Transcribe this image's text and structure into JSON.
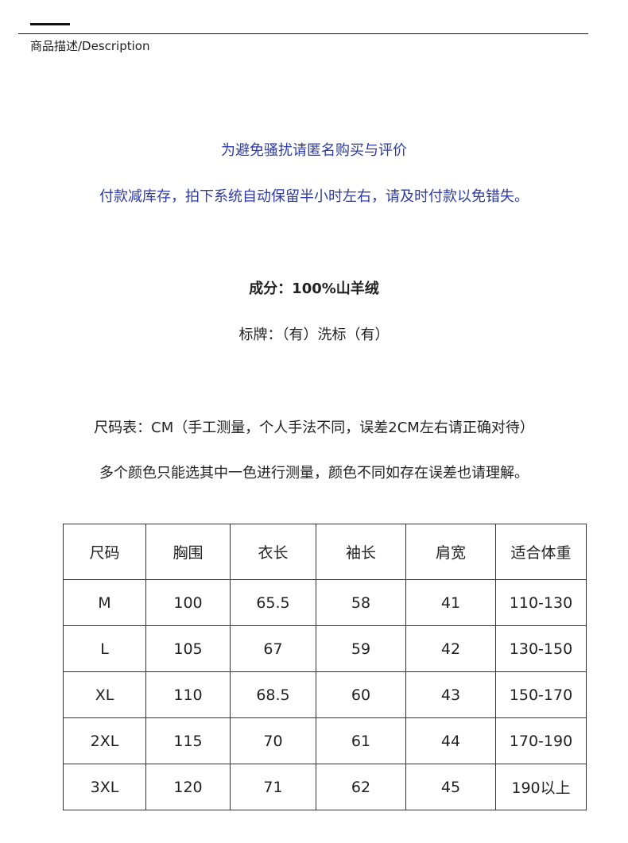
{
  "header": {
    "section_title": "商品描述/Description"
  },
  "notices": {
    "anonymous": "为避免骚扰请匿名购买与评价",
    "payment": "付款减库存，拍下系统自动保留半小时左右，请及时付款以免错失。"
  },
  "info": {
    "composition": "成分：100%山羊绒",
    "labels": "标牌：（有）洗标（有）",
    "size_note": "尺码表：CM（手工测量，个人手法不同，误差2CM左右请正确对待）",
    "color_note": "多个颜色只能选其中一色进行测量，颜色不同如存在误差也请理解。"
  },
  "colors": {
    "notice_text": "#2e3aa8"
  },
  "size_table": {
    "headers": [
      "尺码",
      "胸围",
      "衣长",
      "袖长",
      "肩宽",
      "适合体重"
    ],
    "rows": [
      [
        "M",
        "100",
        "65.5",
        "58",
        "41",
        "110-130"
      ],
      [
        "L",
        "105",
        "67",
        "59",
        "42",
        "130-150"
      ],
      [
        "XL",
        "110",
        "68.5",
        "60",
        "43",
        "150-170"
      ],
      [
        "2XL",
        "115",
        "70",
        "61",
        "44",
        "170-190"
      ],
      [
        "3XL",
        "120",
        "71",
        "62",
        "45",
        "190以上"
      ]
    ]
  }
}
